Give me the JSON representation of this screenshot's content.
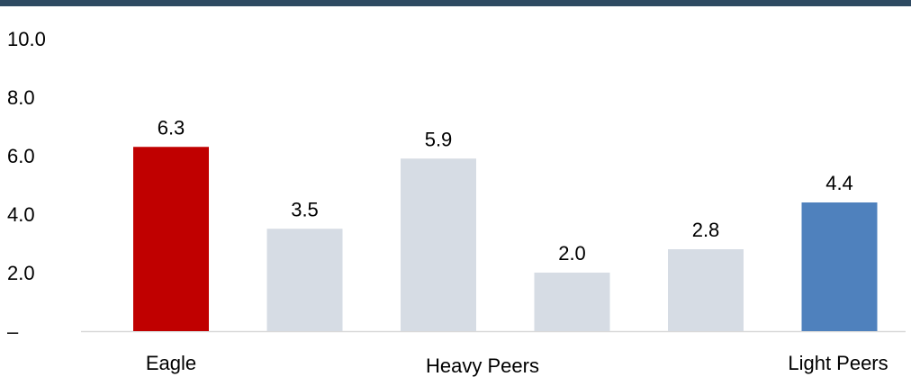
{
  "chart_data": {
    "type": "bar",
    "categories": [
      "Eagle",
      "",
      "Heavy Peers",
      "",
      "",
      "Light Peers"
    ],
    "values": [
      6.3,
      3.5,
      5.9,
      2.0,
      2.8,
      4.4
    ],
    "value_labels": [
      "6.3",
      "3.5",
      "5.9",
      "2.0",
      "2.8",
      "4.4"
    ],
    "bar_colors": [
      "#C00000",
      "#D6DCE4",
      "#D6DCE4",
      "#D6DCE4",
      "#D6DCE4",
      "#4F81BD"
    ],
    "y_ticks": [
      0,
      2,
      4,
      6,
      8,
      10
    ],
    "y_tick_labels": [
      "–",
      "2.0",
      "4.0",
      "6.0",
      "8.0",
      "10.0"
    ],
    "ylim": [
      0,
      10
    ],
    "title": "",
    "xlabel": "",
    "ylabel": "",
    "grid": false,
    "legend": "none"
  },
  "colors": {
    "top_rule": "#2E4A62",
    "axis_line": "#D9D9D9"
  }
}
